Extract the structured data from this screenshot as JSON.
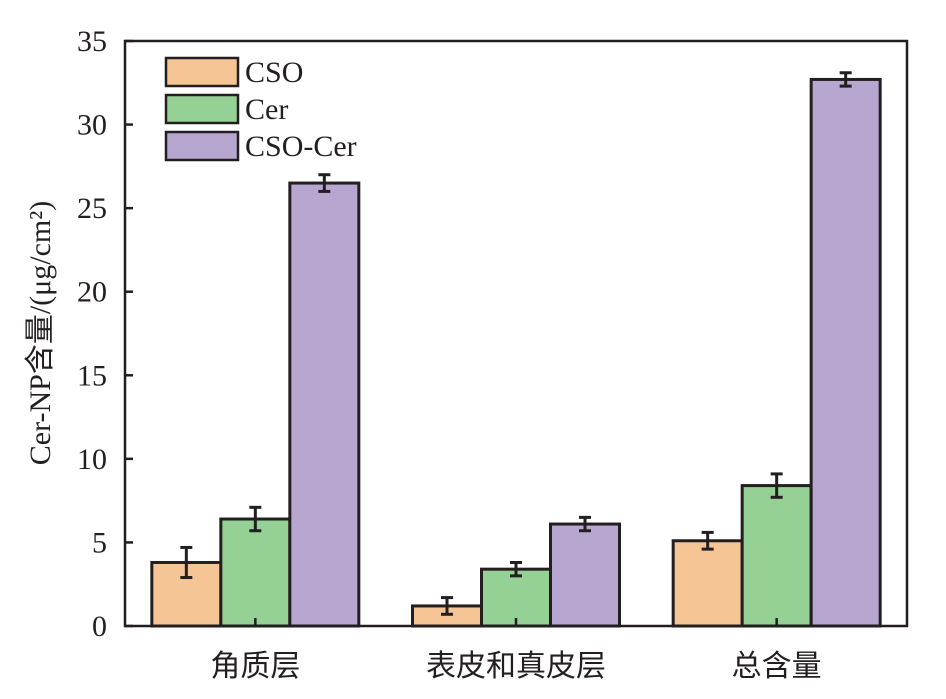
{
  "chart_data": {
    "type": "bar",
    "categories": [
      "角质层",
      "表皮和真皮层",
      "总含量"
    ],
    "series": [
      {
        "name": "CSO",
        "values": [
          3.8,
          1.2,
          5.1
        ],
        "errors": [
          0.9,
          0.5,
          0.5
        ],
        "color": "#f6c596"
      },
      {
        "name": "Cer",
        "values": [
          6.4,
          3.4,
          8.4
        ],
        "errors": [
          0.7,
          0.4,
          0.7
        ],
        "color": "#95d095"
      },
      {
        "name": "CSO-Cer",
        "values": [
          26.5,
          6.1,
          32.7
        ],
        "errors": [
          0.5,
          0.4,
          0.4
        ],
        "color": "#b7a6d0"
      }
    ],
    "ylabel": "Cer-NP含量/(μg/cm²)",
    "xlabel": "",
    "ylim": [
      0,
      35
    ],
    "yticks": [
      0,
      5,
      10,
      15,
      20,
      25,
      30,
      35
    ],
    "legend_position": "top-left",
    "grid": false
  }
}
